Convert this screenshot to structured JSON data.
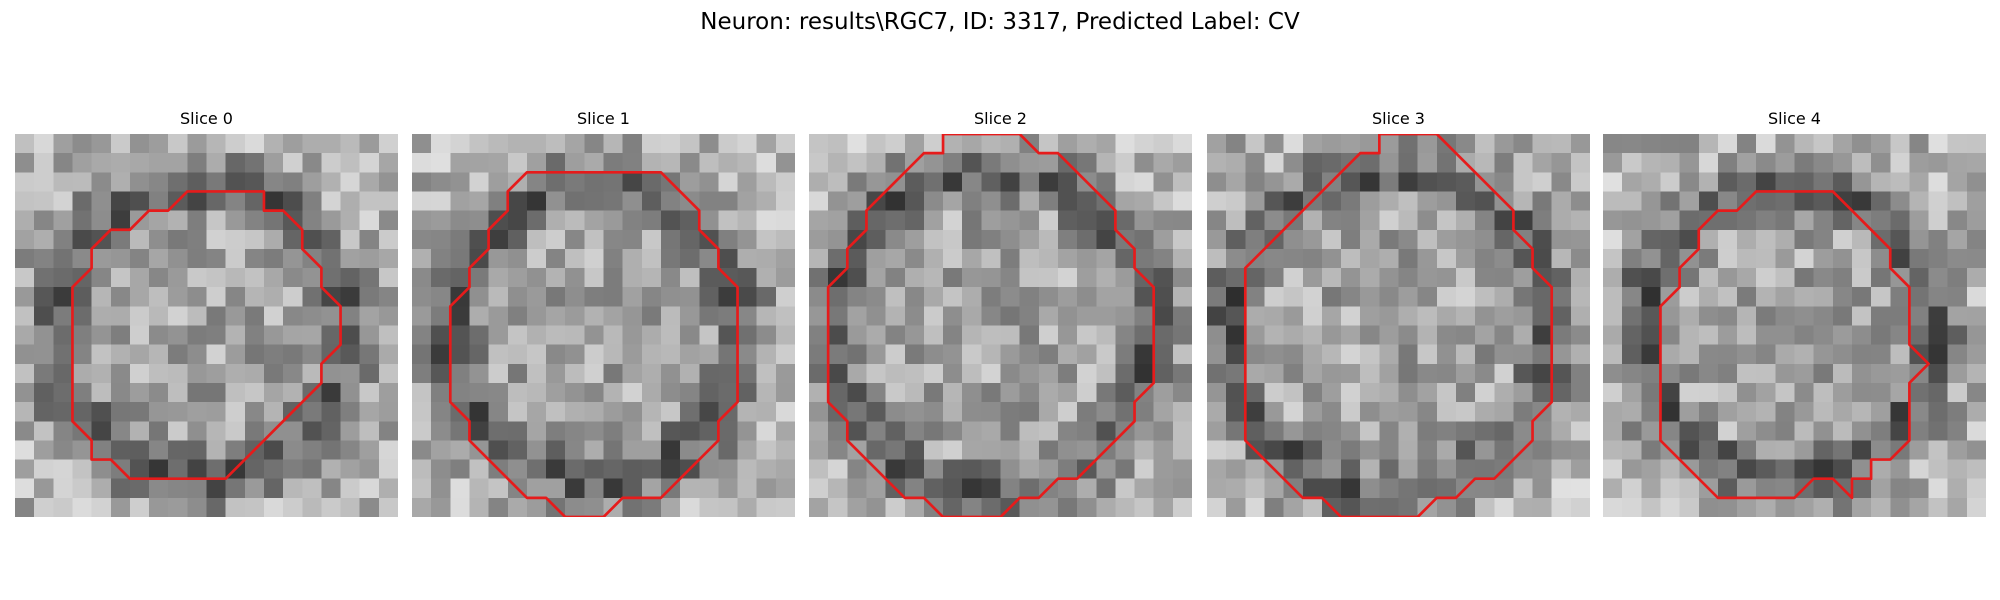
{
  "figure": {
    "title": "Neuron: results\\RGC7, ID: 3317, Predicted Label: CV",
    "contour_color": "#e61b1b"
  },
  "slices": [
    {
      "title": "Slice 0",
      "contour": [
        [
          10,
          3
        ],
        [
          13,
          3
        ],
        [
          13,
          4
        ],
        [
          14,
          4
        ],
        [
          15,
          5
        ],
        [
          15,
          6
        ],
        [
          16,
          7
        ],
        [
          16,
          8
        ],
        [
          17,
          9
        ],
        [
          17,
          11
        ],
        [
          16,
          12
        ],
        [
          16,
          13
        ],
        [
          15,
          14
        ],
        [
          14,
          15
        ],
        [
          13,
          16
        ],
        [
          12,
          17
        ],
        [
          11,
          18
        ],
        [
          6,
          18
        ],
        [
          5,
          17
        ],
        [
          4,
          17
        ],
        [
          4,
          16
        ],
        [
          3,
          15
        ],
        [
          3,
          14
        ],
        [
          3,
          13
        ],
        [
          3,
          8
        ],
        [
          4,
          7
        ],
        [
          4,
          6
        ],
        [
          5,
          5
        ],
        [
          6,
          5
        ],
        [
          7,
          4
        ],
        [
          8,
          4
        ],
        [
          9,
          3
        ]
      ]
    },
    {
      "title": "Slice 1",
      "contour": [
        [
          6,
          2
        ],
        [
          13,
          2
        ],
        [
          14,
          3
        ],
        [
          15,
          4
        ],
        [
          15,
          5
        ],
        [
          16,
          6
        ],
        [
          16,
          7
        ],
        [
          17,
          8
        ],
        [
          17,
          9
        ],
        [
          17,
          11
        ],
        [
          17,
          14
        ],
        [
          16,
          15
        ],
        [
          16,
          16
        ],
        [
          15,
          17
        ],
        [
          14,
          18
        ],
        [
          13,
          19
        ],
        [
          11,
          19
        ],
        [
          10,
          20
        ],
        [
          9,
          20
        ],
        [
          8,
          20
        ],
        [
          7,
          19
        ],
        [
          6,
          19
        ],
        [
          5,
          18
        ],
        [
          4,
          17
        ],
        [
          3,
          16
        ],
        [
          3,
          15
        ],
        [
          2,
          14
        ],
        [
          2,
          12
        ],
        [
          2,
          9
        ],
        [
          3,
          8
        ],
        [
          3,
          7
        ],
        [
          4,
          6
        ],
        [
          4,
          5
        ],
        [
          5,
          4
        ],
        [
          5,
          3
        ]
      ]
    },
    {
      "title": "Slice 2",
      "contour": [
        [
          7,
          0
        ],
        [
          11,
          0
        ],
        [
          12,
          1
        ],
        [
          13,
          1
        ],
        [
          14,
          2
        ],
        [
          15,
          3
        ],
        [
          16,
          4
        ],
        [
          16,
          5
        ],
        [
          17,
          6
        ],
        [
          17,
          7
        ],
        [
          18,
          8
        ],
        [
          18,
          10
        ],
        [
          18,
          13
        ],
        [
          17,
          14
        ],
        [
          17,
          15
        ],
        [
          16,
          16
        ],
        [
          15,
          17
        ],
        [
          14,
          18
        ],
        [
          13,
          18
        ],
        [
          12,
          19
        ],
        [
          11,
          19
        ],
        [
          10,
          20
        ],
        [
          7,
          20
        ],
        [
          6,
          19
        ],
        [
          5,
          19
        ],
        [
          4,
          18
        ],
        [
          3,
          17
        ],
        [
          2,
          16
        ],
        [
          2,
          15
        ],
        [
          1,
          14
        ],
        [
          1,
          11
        ],
        [
          1,
          8
        ],
        [
          2,
          7
        ],
        [
          2,
          6
        ],
        [
          3,
          5
        ],
        [
          3,
          4
        ],
        [
          4,
          3
        ],
        [
          5,
          2
        ],
        [
          6,
          1
        ],
        [
          7,
          1
        ]
      ]
    },
    {
      "title": "Slice 3",
      "contour": [
        [
          9,
          0
        ],
        [
          12,
          0
        ],
        [
          13,
          1
        ],
        [
          14,
          2
        ],
        [
          15,
          3
        ],
        [
          16,
          4
        ],
        [
          16,
          5
        ],
        [
          17,
          6
        ],
        [
          17,
          7
        ],
        [
          18,
          8
        ],
        [
          18,
          11
        ],
        [
          18,
          14
        ],
        [
          17,
          15
        ],
        [
          17,
          16
        ],
        [
          16,
          17
        ],
        [
          15,
          18
        ],
        [
          14,
          18
        ],
        [
          13,
          19
        ],
        [
          12,
          19
        ],
        [
          11,
          20
        ],
        [
          7,
          20
        ],
        [
          6,
          19
        ],
        [
          5,
          19
        ],
        [
          4,
          18
        ],
        [
          3,
          17
        ],
        [
          2,
          16
        ],
        [
          2,
          15
        ],
        [
          2,
          14
        ],
        [
          2,
          7
        ],
        [
          3,
          6
        ],
        [
          4,
          5
        ],
        [
          5,
          4
        ],
        [
          6,
          3
        ],
        [
          7,
          2
        ],
        [
          8,
          1
        ],
        [
          9,
          1
        ]
      ]
    },
    {
      "title": "Slice 4",
      "contour": [
        [
          8,
          3
        ],
        [
          12,
          3
        ],
        [
          13,
          4
        ],
        [
          14,
          5
        ],
        [
          15,
          6
        ],
        [
          15,
          7
        ],
        [
          16,
          8
        ],
        [
          16,
          11
        ],
        [
          17,
          12
        ],
        [
          16,
          13
        ],
        [
          16,
          16
        ],
        [
          15,
          17
        ],
        [
          14,
          17
        ],
        [
          14,
          18
        ],
        [
          13,
          18
        ],
        [
          13,
          19
        ],
        [
          12,
          18
        ],
        [
          11,
          18
        ],
        [
          10,
          19
        ],
        [
          6,
          19
        ],
        [
          5,
          18
        ],
        [
          4,
          17
        ],
        [
          3,
          16
        ],
        [
          3,
          15
        ],
        [
          3,
          12
        ],
        [
          3,
          9
        ],
        [
          4,
          8
        ],
        [
          4,
          7
        ],
        [
          5,
          6
        ],
        [
          5,
          5
        ],
        [
          6,
          4
        ],
        [
          7,
          4
        ]
      ]
    }
  ]
}
